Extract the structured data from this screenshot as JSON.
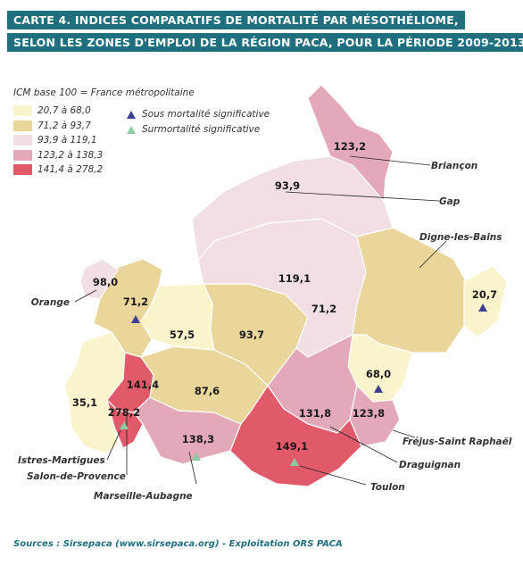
{
  "title": {
    "line1": "CARTE 4. INDICES COMPARATIFS DE MORTALITÉ PAR MÉSOTHÉLIOME,",
    "line2": "SELON LES ZONES D'EMPLOI DE LA RÉGION PACA, POUR LA PÉRIODE 2009-2013"
  },
  "legend": {
    "title": "ICM base 100 = France métropolitaine",
    "classes": [
      {
        "label": "20,7 à 68,0",
        "color": "#faf4cc"
      },
      {
        "label": "71,2 à 93,7",
        "color": "#ead69a"
      },
      {
        "label": "93,9 à 119,1",
        "color": "#f2dfe4"
      },
      {
        "label": "123,2 à 138,3",
        "color": "#e3a9b8"
      },
      {
        "label": "141,4 à 278,2",
        "color": "#e05a6a"
      }
    ],
    "symbols": [
      {
        "label": "Sous mortalité significative",
        "color": "#3c3f8f"
      },
      {
        "label": "Surmortalité significative",
        "color": "#8cc9a2"
      }
    ]
  },
  "zones": [
    {
      "name": "Briançon",
      "value": "123,2",
      "class": 3
    },
    {
      "name": "Gap",
      "value": "93,9",
      "class": 2
    },
    {
      "name": "Digne-les-Bains",
      "value": "119,1",
      "class": 2
    },
    {
      "name": "Orange",
      "value": "98,0",
      "class": 2
    },
    {
      "name": "",
      "value": "71,2",
      "class": 1,
      "marker": "sous"
    },
    {
      "name": "",
      "value": "57,5",
      "class": 0
    },
    {
      "name": "",
      "value": "93,7",
      "class": 1
    },
    {
      "name": "",
      "value": "71,2",
      "class": 1
    },
    {
      "name": "",
      "value": "20,7",
      "class": 0,
      "marker": "sous"
    },
    {
      "name": "",
      "value": "68,0",
      "class": 0,
      "marker": "sous"
    },
    {
      "name": "Istres-Martigues",
      "value": "35,1",
      "class": 0
    },
    {
      "name": "Salon-de-Provence",
      "value": "141,4",
      "class": 4
    },
    {
      "name": "",
      "value": "278,2",
      "class": 4,
      "marker": "sur"
    },
    {
      "name": "",
      "value": "87,6",
      "class": 1
    },
    {
      "name": "Marseille-Aubagne",
      "value": "138,3",
      "class": 3,
      "marker": "sur"
    },
    {
      "name": "Draguignan",
      "value": "131,8",
      "class": 3
    },
    {
      "name": "Fréjus-Saint Raphaël",
      "value": "123,8",
      "class": 3
    },
    {
      "name": "Toulon",
      "value": "149,1",
      "class": 4,
      "marker": "sur"
    }
  ],
  "source": "Sources : Sirsepaca (www.sirsepaca.org) - Exploitation ORS PACA"
}
